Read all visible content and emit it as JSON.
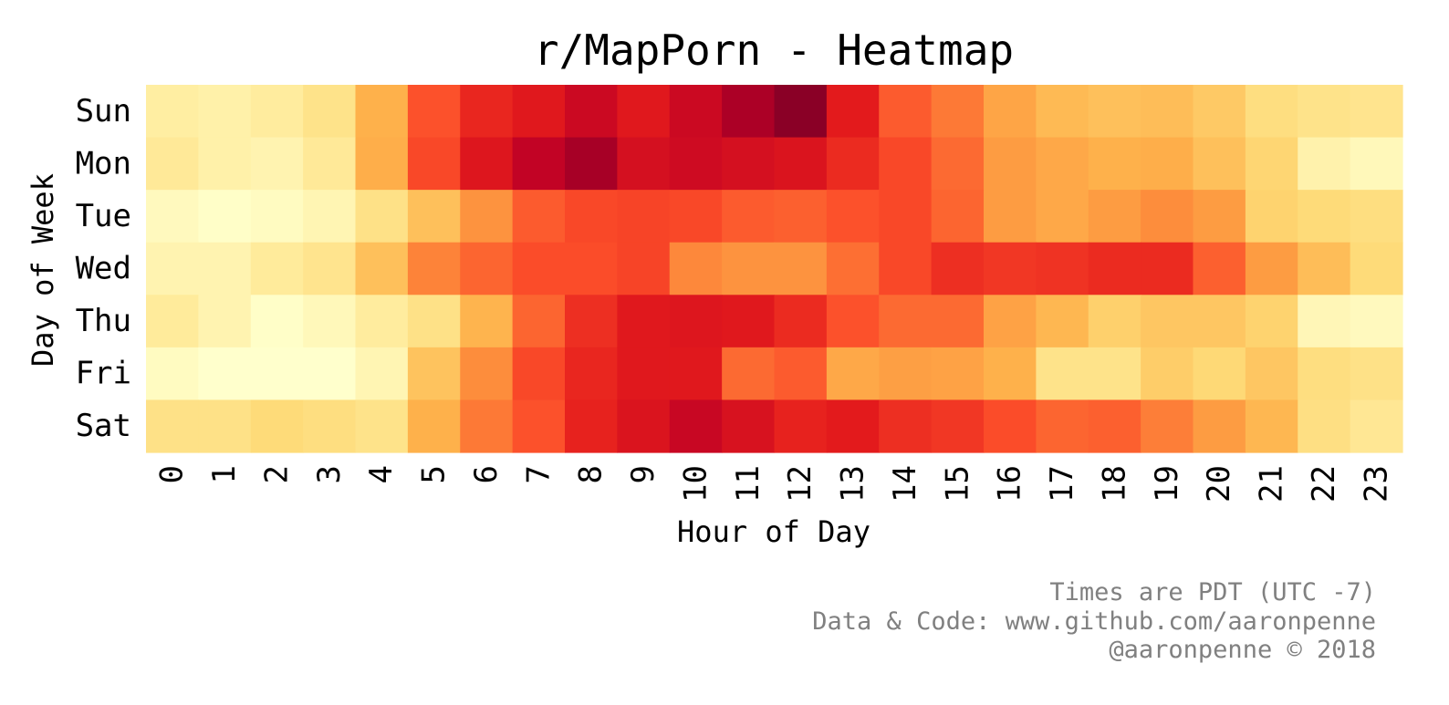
{
  "chart_data": {
    "type": "heatmap",
    "title": "r/MapPorn - Heatmap",
    "xlabel": "Hour of Day",
    "ylabel": "Day of Week",
    "x_categories": [
      "0",
      "1",
      "2",
      "3",
      "4",
      "5",
      "6",
      "7",
      "8",
      "9",
      "10",
      "11",
      "12",
      "13",
      "14",
      "15",
      "16",
      "17",
      "18",
      "19",
      "20",
      "21",
      "22",
      "23"
    ],
    "y_categories": [
      "Sun",
      "Mon",
      "Tue",
      "Wed",
      "Thu",
      "Fri",
      "Sat"
    ],
    "colormap": "YlOrRd",
    "value_range": [
      0,
      1
    ],
    "values": [
      [
        0.12,
        0.1,
        0.13,
        0.19,
        0.38,
        0.62,
        0.72,
        0.76,
        0.83,
        0.76,
        0.83,
        0.91,
        0.98,
        0.75,
        0.6,
        0.54,
        0.42,
        0.35,
        0.33,
        0.34,
        0.3,
        0.22,
        0.19,
        0.18
      ],
      [
        0.15,
        0.1,
        0.08,
        0.15,
        0.39,
        0.64,
        0.77,
        0.86,
        0.92,
        0.8,
        0.82,
        0.8,
        0.78,
        0.71,
        0.64,
        0.57,
        0.45,
        0.41,
        0.38,
        0.39,
        0.33,
        0.26,
        0.09,
        0.05
      ],
      [
        0.04,
        0.01,
        0.03,
        0.07,
        0.2,
        0.33,
        0.48,
        0.6,
        0.64,
        0.65,
        0.64,
        0.6,
        0.59,
        0.62,
        0.64,
        0.58,
        0.45,
        0.41,
        0.45,
        0.5,
        0.45,
        0.27,
        0.24,
        0.22
      ],
      [
        0.08,
        0.08,
        0.14,
        0.18,
        0.33,
        0.52,
        0.58,
        0.63,
        0.63,
        0.65,
        0.51,
        0.48,
        0.48,
        0.56,
        0.64,
        0.7,
        0.68,
        0.69,
        0.71,
        0.71,
        0.59,
        0.45,
        0.34,
        0.24
      ],
      [
        0.14,
        0.08,
        0.01,
        0.05,
        0.13,
        0.2,
        0.37,
        0.58,
        0.7,
        0.76,
        0.77,
        0.76,
        0.71,
        0.62,
        0.57,
        0.57,
        0.43,
        0.36,
        0.28,
        0.31,
        0.31,
        0.27,
        0.06,
        0.04
      ],
      [
        0.03,
        0.0,
        0.0,
        0.0,
        0.07,
        0.32,
        0.5,
        0.64,
        0.72,
        0.76,
        0.76,
        0.57,
        0.6,
        0.41,
        0.44,
        0.43,
        0.38,
        0.19,
        0.19,
        0.29,
        0.25,
        0.31,
        0.22,
        0.2
      ],
      [
        0.2,
        0.2,
        0.24,
        0.22,
        0.19,
        0.38,
        0.54,
        0.62,
        0.73,
        0.78,
        0.84,
        0.79,
        0.73,
        0.75,
        0.7,
        0.68,
        0.63,
        0.58,
        0.59,
        0.53,
        0.45,
        0.36,
        0.21,
        0.16
      ]
    ]
  },
  "credits": {
    "line1": "Times are PDT (UTC -7)",
    "line2": "Data & Code: www.github.com/aaronpenne",
    "line3": "@aaronpenne © 2018"
  }
}
